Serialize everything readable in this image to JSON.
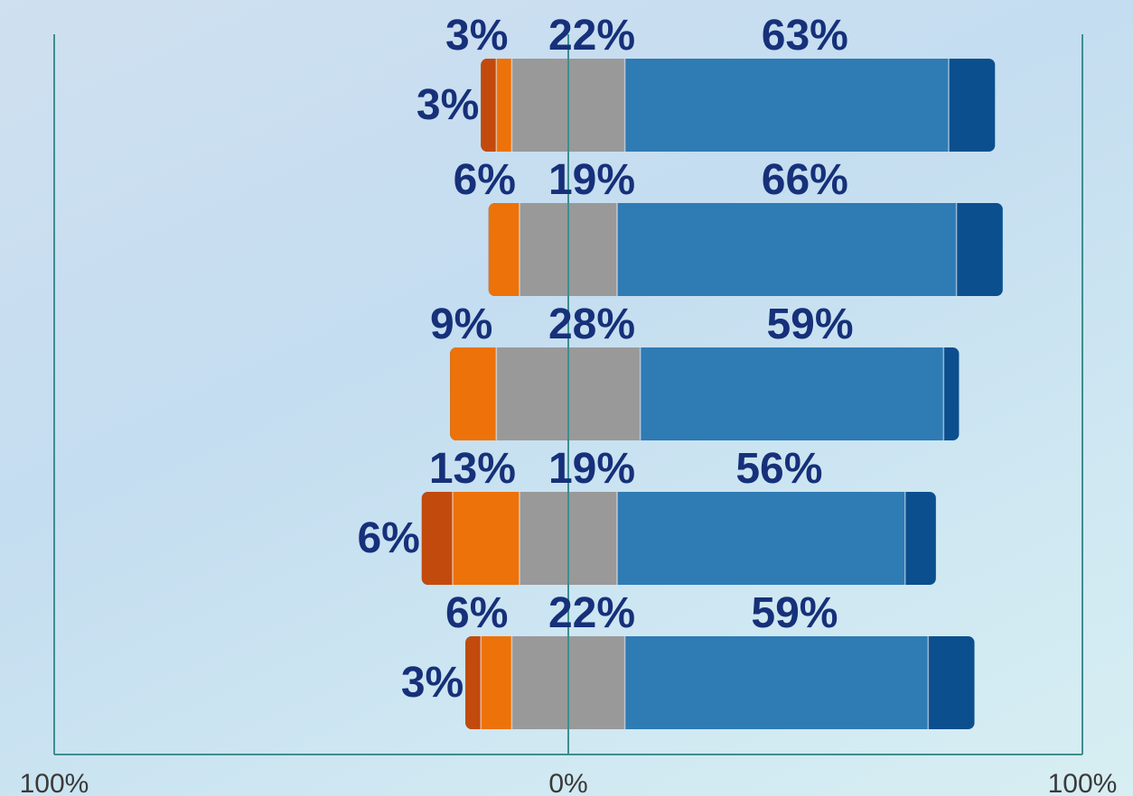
{
  "chart_data": {
    "type": "bar",
    "orientation": "horizontal",
    "stacked": true,
    "diverging": true,
    "title": "",
    "xlabel": "",
    "ylabel": "",
    "xlim": [
      -100,
      100
    ],
    "x_tick_labels": [
      "100%",
      "0%",
      "100%"
    ],
    "grid": false,
    "legend": "none",
    "segment_colors": [
      "#c24a0c",
      "#ec7209",
      "#999999",
      "#2f7bb4",
      "#0b4f8e"
    ],
    "label_color": "#16307a",
    "axis_color": "#3d8e90",
    "rows": [
      {
        "segments": [
          3,
          3,
          22,
          63,
          9
        ],
        "labels": [
          "3%",
          "3%",
          "22%",
          "63%",
          ""
        ]
      },
      {
        "segments": [
          0,
          6,
          19,
          66,
          9
        ],
        "labels": [
          "",
          "6%",
          "19%",
          "66%",
          ""
        ]
      },
      {
        "segments": [
          0,
          9,
          28,
          59,
          3
        ],
        "labels": [
          "",
          "9%",
          "28%",
          "59%",
          ""
        ]
      },
      {
        "segments": [
          6,
          13,
          19,
          56,
          6
        ],
        "labels": [
          "6%",
          "13%",
          "19%",
          "56%",
          ""
        ]
      },
      {
        "segments": [
          3,
          6,
          22,
          59,
          9
        ],
        "labels": [
          "3%",
          "6%",
          "22%",
          "59%",
          ""
        ]
      }
    ]
  }
}
